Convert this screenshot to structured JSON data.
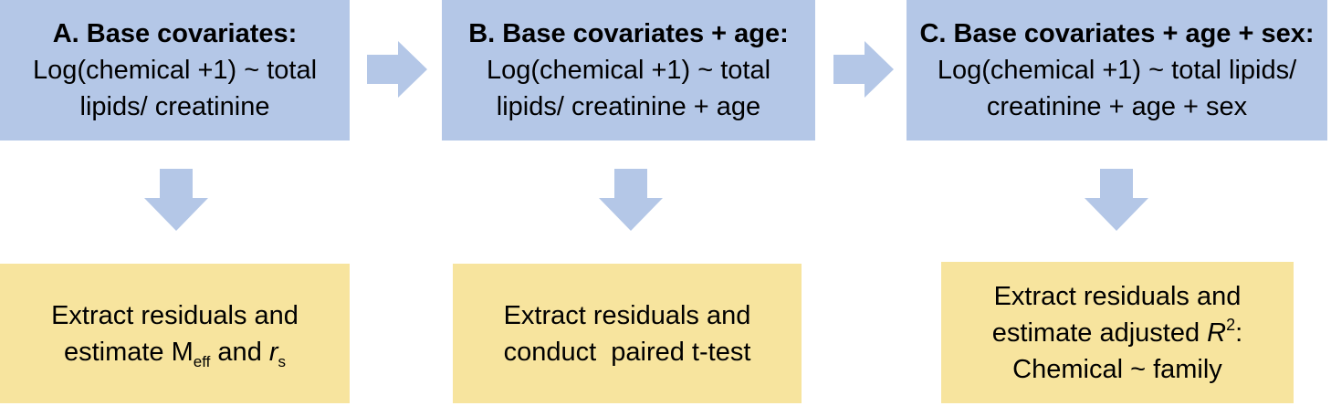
{
  "models": [
    {
      "title": "A. Base covariates:",
      "formula": "Log(chemical +1) ~ total\nlipids/ creatinine"
    },
    {
      "title": "B. Base covariates + age:",
      "formula": "Log(chemical +1) ~ total\nlipids/ creatinine + age"
    },
    {
      "title": "C. Base covariates + age + sex:",
      "formula": "Log(chemical +1) ~ total lipids/\ncreatinine + age + sex"
    }
  ],
  "results": [
    {
      "line1": "Extract residuals and",
      "line2_prefix": "estimate M",
      "line2_sub1": "eff",
      "line2_mid": " and ",
      "line2_var": "r",
      "line2_sub2": "s"
    },
    {
      "line1": "Extract residuals and",
      "line2": "conduct  paired t-test"
    },
    {
      "line1": "Extract residuals and",
      "line2_prefix": "estimate adjusted ",
      "line2_var": "R",
      "line2_sup": "2",
      "line2_suffix": ":",
      "line3": "Chemical ~ family"
    }
  ],
  "colors": {
    "model_fill": "#b4c7e7",
    "result_fill": "#f7e49e",
    "arrow_fill": "#b4c7e7"
  }
}
